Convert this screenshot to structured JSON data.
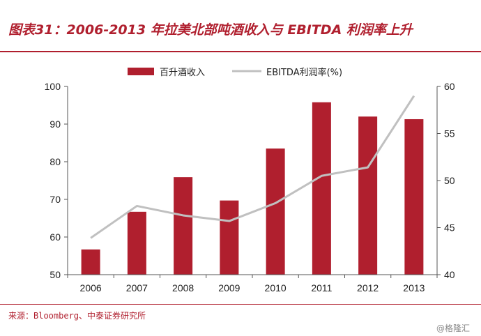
{
  "header": {
    "title": "图表31：2006-2013 年拉美北部吨酒收入与 EBITDA 利润率上升"
  },
  "footer": {
    "source": "来源：Bloomberg、中泰证券研究所",
    "watermark": "@格隆汇"
  },
  "colors": {
    "bar": "#b01f2e",
    "line": "#c0c0c0",
    "accent": "#b01f2e"
  },
  "chart_data": {
    "type": "bar",
    "categories": [
      "2006",
      "2007",
      "2008",
      "2009",
      "2010",
      "2011",
      "2012",
      "2013"
    ],
    "series": [
      {
        "name": "百升酒收入",
        "type": "bar",
        "axis": "left",
        "values": [
          56.7,
          66.7,
          75.9,
          69.7,
          83.5,
          95.8,
          92.0,
          91.3
        ]
      },
      {
        "name": "EBITDA利润率(%)",
        "type": "line",
        "axis": "right",
        "values": [
          43.9,
          47.3,
          46.3,
          45.7,
          47.6,
          50.5,
          51.4,
          59.0
        ]
      }
    ],
    "ylim_left": [
      50,
      100
    ],
    "yticks_left": [
      "50",
      "60",
      "70",
      "80",
      "90",
      "100"
    ],
    "ylim_right": [
      40,
      60
    ],
    "yticks_right": [
      "40",
      "45",
      "50",
      "55",
      "60"
    ],
    "legend_position": "top",
    "grid": false
  }
}
